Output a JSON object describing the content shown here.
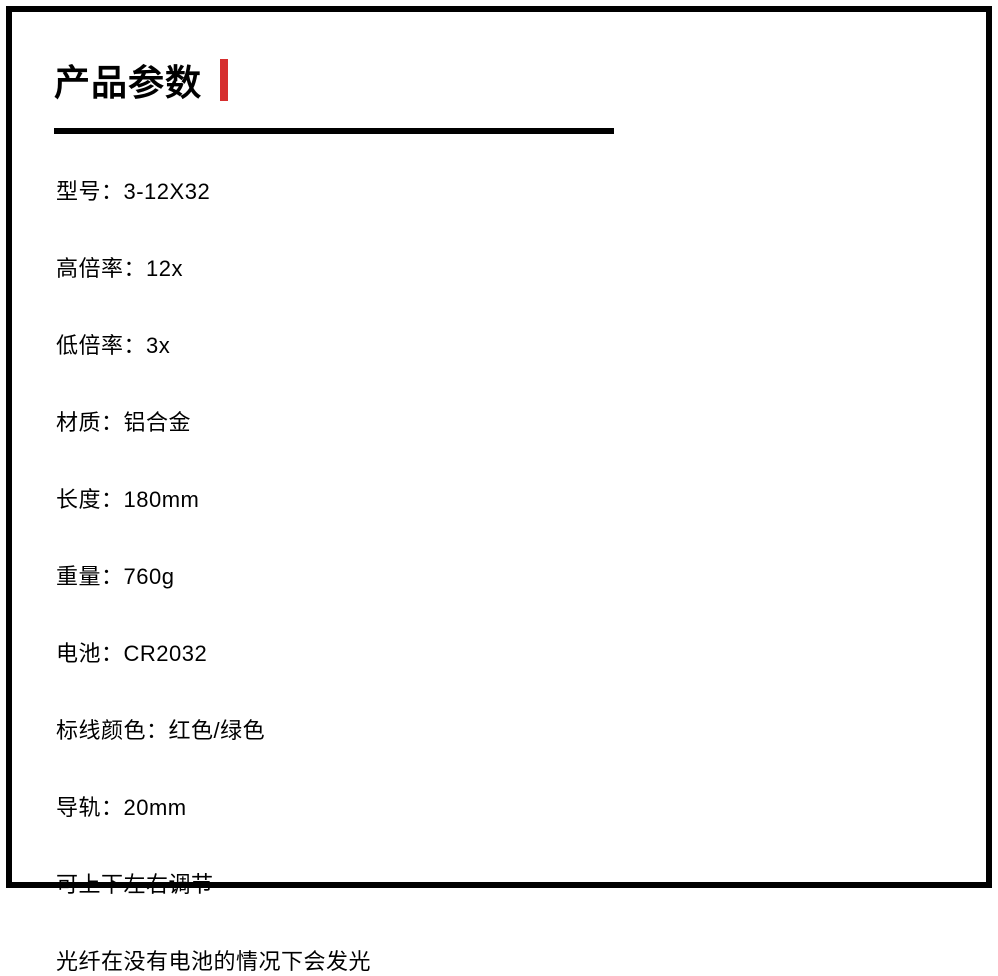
{
  "header": {
    "title": "产品参数"
  },
  "styling": {
    "accent_color": "#d62e2e",
    "text_color": "#000000",
    "background_color": "#ffffff",
    "border_color": "#000000",
    "title_fontsize": 36,
    "spec_fontsize": 22,
    "divider_width": 560,
    "divider_height": 6,
    "border_width": 6,
    "accent_bar_width": 8,
    "accent_bar_height": 42
  },
  "specs": [
    "型号：3-12X32",
    "高倍率：12x",
    "低倍率：3x",
    "材质：铝合金",
    "长度：180mm",
    "重量：760g",
    "电池：CR2032",
    "标线颜色：红色/绿色",
    "导轨：20mm",
    "可上下左右调节",
    "光纤在没有电池的情况下会发光"
  ]
}
